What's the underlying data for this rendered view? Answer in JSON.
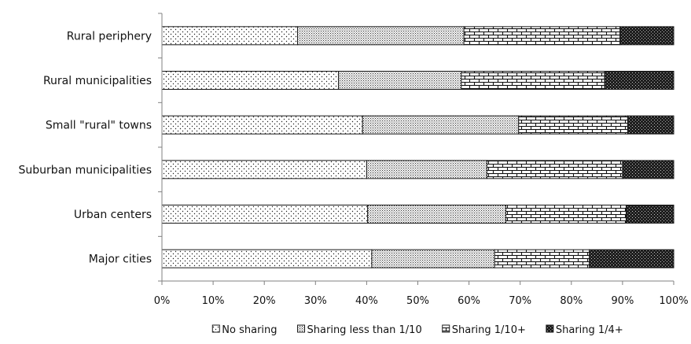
{
  "chart_data": {
    "type": "bar",
    "orientation": "horizontal",
    "stacked": true,
    "normalized": true,
    "categories": [
      "Rural periphery",
      "Rural municipalities",
      "Small \"rural\" towns",
      "Suburban municipalities",
      "Urban centers",
      "Major cities"
    ],
    "series": [
      {
        "name": "No sharing",
        "pattern": "sparse-dots",
        "values": [
          26.5,
          34.5,
          39.2,
          40.0,
          40.2,
          41.0
        ]
      },
      {
        "name": "Sharing less than 1/10",
        "pattern": "dense-dots",
        "values": [
          32.5,
          24.0,
          30.5,
          23.5,
          27.0,
          24.0
        ]
      },
      {
        "name": "Sharing 1/10+",
        "pattern": "bricks",
        "values": [
          30.5,
          28.0,
          21.3,
          26.5,
          23.5,
          18.5
        ]
      },
      {
        "name": "Sharing 1/4+",
        "pattern": "dark-hatch",
        "values": [
          10.5,
          13.5,
          9.0,
          10.0,
          9.3,
          16.5
        ]
      }
    ],
    "xticks": [
      "0%",
      "10%",
      "20%",
      "30%",
      "40%",
      "50%",
      "60%",
      "70%",
      "80%",
      "90%",
      "100%"
    ],
    "xlim": [
      0,
      100
    ],
    "xlabel": "",
    "ylabel": "",
    "grid": false,
    "legend_position": "bottom",
    "colors": {
      "outline": "#1a1a1a",
      "axis": "#808080",
      "background": "#ffffff"
    }
  }
}
